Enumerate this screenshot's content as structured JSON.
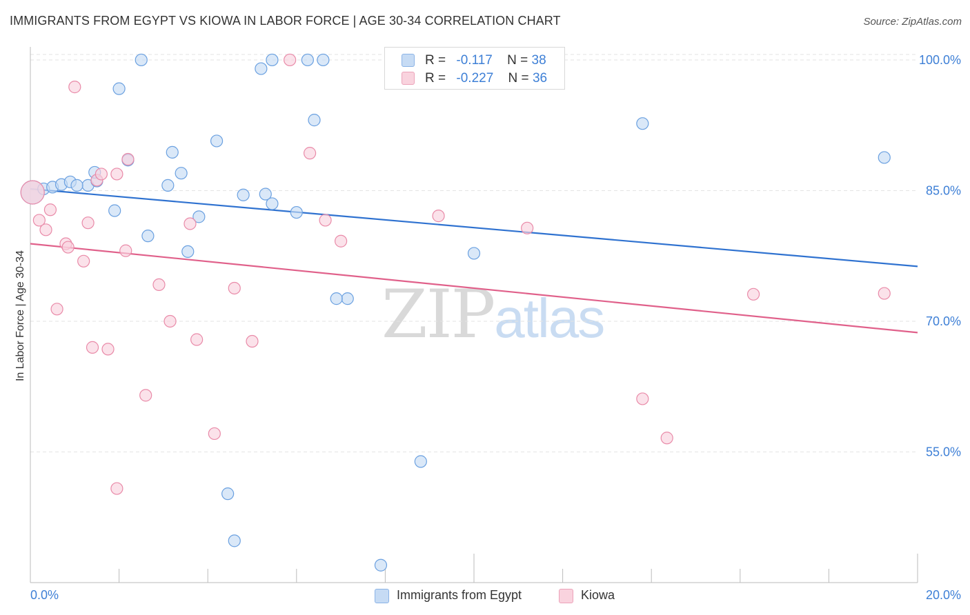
{
  "title": "IMMIGRANTS FROM EGYPT VS KIOWA IN LABOR FORCE | AGE 30-34 CORRELATION CHART",
  "source": "Source: ZipAtlas.com",
  "watermark": {
    "zip": "ZIP",
    "atlas": "atlas"
  },
  "legend": [
    {
      "r_label": "R =",
      "r_value": "-0.117",
      "n_label": "N =",
      "n_value": "38",
      "color": "#a9c8ef"
    },
    {
      "r_label": "R =",
      "r_value": "-0.227",
      "n_label": "N =",
      "n_value": "36",
      "color": "#f5b8cb"
    }
  ],
  "bottom_legend": [
    {
      "label": "Immigrants from Egypt",
      "color": "#a9c8ef"
    },
    {
      "label": "Kiowa",
      "color": "#f5b8cb"
    }
  ],
  "chart_data": {
    "type": "scatter",
    "title": "IMMIGRANTS FROM EGYPT VS KIOWA IN LABOR FORCE | AGE 30-34 CORRELATION CHART",
    "xlabel": "",
    "ylabel": "In Labor Force | Age 30-34",
    "xlim": [
      0,
      20
    ],
    "ylim": [
      40,
      101.5
    ],
    "x_tick_labels": [
      "0.0%",
      "20.0%"
    ],
    "y_tick_labels": [
      "100.0%",
      "85.0%",
      "70.0%",
      "55.0%"
    ],
    "y_ticks": [
      100,
      85,
      70,
      55
    ],
    "grid": true,
    "legend_position": "top-center",
    "series": [
      {
        "name": "Immigrants from Egypt",
        "color": "#6aa0e0",
        "fill": "#c6dbf4",
        "trend": {
          "x": [
            0,
            20
          ],
          "y": [
            85.2,
            76.3
          ],
          "color": "#2f72d0"
        },
        "points": [
          [
            0.05,
            84.8
          ],
          [
            0.3,
            85.2
          ],
          [
            0.5,
            85.4
          ],
          [
            0.7,
            85.7
          ],
          [
            0.9,
            86.0
          ],
          [
            1.3,
            85.6
          ],
          [
            1.5,
            86.1
          ],
          [
            1.05,
            85.6
          ],
          [
            1.45,
            87.1
          ],
          [
            2.0,
            96.7
          ],
          [
            2.5,
            100.0
          ],
          [
            2.2,
            88.5
          ],
          [
            3.2,
            89.4
          ],
          [
            3.4,
            87.0
          ],
          [
            3.1,
            85.6
          ],
          [
            4.2,
            90.7
          ],
          [
            1.9,
            82.7
          ],
          [
            2.65,
            79.8
          ],
          [
            3.55,
            78.0
          ],
          [
            3.8,
            82.0
          ],
          [
            4.8,
            84.5
          ],
          [
            5.3,
            84.6
          ],
          [
            5.45,
            83.5
          ],
          [
            5.2,
            99.0
          ],
          [
            5.45,
            100.0
          ],
          [
            6.4,
            93.1
          ],
          [
            6.25,
            100.0
          ],
          [
            6.6,
            100.0
          ],
          [
            6.0,
            82.5
          ],
          [
            7.15,
            72.6
          ],
          [
            6.9,
            72.6
          ],
          [
            10.0,
            77.8
          ],
          [
            13.8,
            92.7
          ],
          [
            19.25,
            88.8
          ],
          [
            8.8,
            53.9
          ],
          [
            4.45,
            50.2
          ],
          [
            4.6,
            44.8
          ],
          [
            7.9,
            42.0
          ]
        ]
      },
      {
        "name": "Kiowa",
        "color": "#e98aa8",
        "fill": "#f9d3de",
        "trend": {
          "x": [
            0,
            20
          ],
          "y": [
            78.9,
            68.7
          ],
          "color": "#e0608a"
        },
        "points": [
          [
            0.05,
            84.8
          ],
          [
            0.2,
            81.6
          ],
          [
            0.35,
            80.5
          ],
          [
            0.45,
            82.8
          ],
          [
            0.6,
            71.4
          ],
          [
            0.8,
            78.9
          ],
          [
            0.85,
            78.5
          ],
          [
            1.2,
            76.9
          ],
          [
            1.0,
            96.9
          ],
          [
            1.3,
            81.3
          ],
          [
            1.5,
            86.2
          ],
          [
            1.6,
            86.9
          ],
          [
            1.4,
            67.0
          ],
          [
            1.75,
            66.8
          ],
          [
            1.95,
            86.9
          ],
          [
            2.2,
            88.6
          ],
          [
            2.15,
            78.1
          ],
          [
            2.6,
            61.5
          ],
          [
            2.9,
            74.2
          ],
          [
            3.15,
            70.0
          ],
          [
            3.6,
            81.2
          ],
          [
            3.75,
            67.9
          ],
          [
            4.15,
            57.1
          ],
          [
            4.6,
            73.8
          ],
          [
            5.0,
            67.7
          ],
          [
            1.95,
            50.8
          ],
          [
            5.85,
            100.0
          ],
          [
            6.3,
            89.3
          ],
          [
            6.65,
            81.6
          ],
          [
            7.0,
            79.2
          ],
          [
            9.2,
            82.1
          ],
          [
            11.2,
            80.7
          ],
          [
            13.8,
            61.1
          ],
          [
            14.35,
            56.6
          ],
          [
            16.3,
            73.1
          ],
          [
            19.25,
            73.2
          ]
        ]
      }
    ]
  }
}
